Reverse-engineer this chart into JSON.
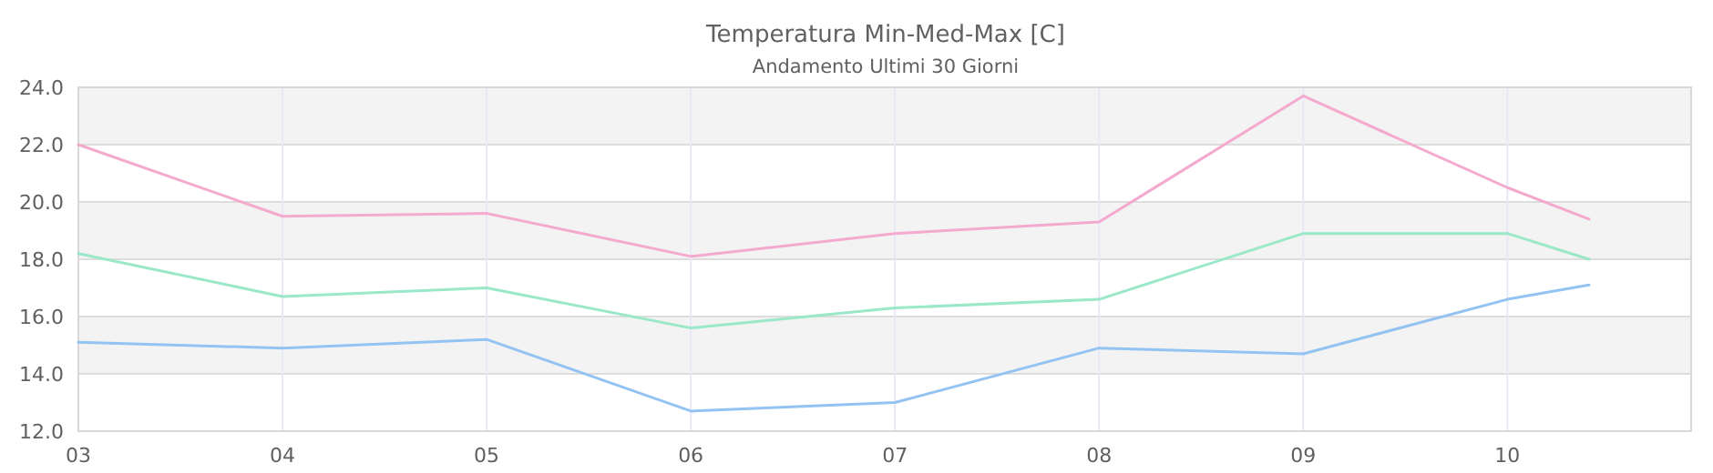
{
  "chart_data": {
    "type": "line",
    "title": "Temperatura Min-Med-Max [C]",
    "subtitle": "Andamento Ultimi 30 Giorni",
    "x": [
      3,
      4,
      5,
      6,
      7,
      8,
      9,
      10,
      10.4
    ],
    "xlim": [
      3,
      10.9
    ],
    "xticks": [
      {
        "value": 3,
        "label": "03"
      },
      {
        "value": 4,
        "label": "04"
      },
      {
        "value": 5,
        "label": "05"
      },
      {
        "value": 6,
        "label": "06"
      },
      {
        "value": 7,
        "label": "07"
      },
      {
        "value": 8,
        "label": "08"
      },
      {
        "value": 9,
        "label": "09"
      },
      {
        "value": 10,
        "label": "10"
      }
    ],
    "ylim": [
      12,
      24
    ],
    "yticks": [
      {
        "value": 12,
        "label": "12.0"
      },
      {
        "value": 14,
        "label": "14.0"
      },
      {
        "value": 16,
        "label": "16.0"
      },
      {
        "value": 18,
        "label": "18.0"
      },
      {
        "value": 20,
        "label": "20.0"
      },
      {
        "value": 22,
        "label": "22.0"
      },
      {
        "value": 24,
        "label": "24.0"
      }
    ],
    "grid": true,
    "bands": [
      {
        "axis": "y",
        "from": 14,
        "to": 16,
        "color": "#f3f3f3"
      },
      {
        "axis": "y",
        "from": 18,
        "to": 20,
        "color": "#f3f3f3"
      },
      {
        "axis": "y",
        "from": 22,
        "to": 24,
        "color": "#f3f3f3"
      }
    ],
    "series": [
      {
        "color": "#f4a9cf",
        "values": [
          22.0,
          19.5,
          19.6,
          18.1,
          18.9,
          19.3,
          23.7,
          20.5,
          19.4
        ]
      },
      {
        "color": "#9ae8c8",
        "values": [
          18.2,
          16.7,
          17.0,
          15.6,
          16.3,
          16.6,
          18.9,
          18.9,
          18.0
        ]
      },
      {
        "color": "#92c3f2",
        "values": [
          15.1,
          14.9,
          15.2,
          12.7,
          13.0,
          14.9,
          14.7,
          16.6,
          17.1
        ]
      }
    ]
  }
}
